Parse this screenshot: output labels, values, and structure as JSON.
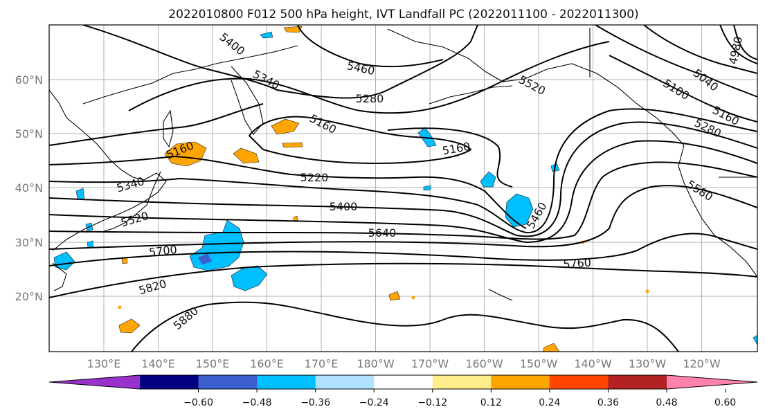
{
  "title": "2022010800 F012 500 hPa height, IVT Landfall PC (2022011100 - 2022011300)",
  "map": {
    "lon_labels": [
      "130°E",
      "140°E",
      "150°E",
      "160°E",
      "170°E",
      "180°W",
      "170°W",
      "160°W",
      "150°W",
      "140°W",
      "130°W",
      "120°W"
    ],
    "lat_labels": [
      "60°N",
      "50°N",
      "40°N",
      "30°N",
      "20°N"
    ]
  },
  "colorbar": {
    "colors": [
      "#9932cc",
      "#000080",
      "#3a5fcd",
      "#00bfff",
      "#b0e2ff",
      "#ffffff",
      "#ffec8b",
      "#ffa500",
      "#ff4500",
      "#b22222",
      "#ff82ab"
    ],
    "tick_labels": [
      "−0.60",
      "−0.48",
      "−0.36",
      "−0.24",
      "−0.12",
      "0.12",
      "0.24",
      "0.36",
      "0.48",
      "0.60"
    ]
  },
  "contours": {
    "labels": [
      "5400",
      "5460",
      "5340",
      "5280",
      "5160",
      "5520",
      "5040",
      "5100",
      "5160",
      "5280",
      "4980",
      "5160",
      "5160",
      "5340",
      "5220",
      "5400",
      "5640",
      "5520",
      "5460",
      "5580",
      "5700",
      "5760",
      "5820",
      "5880"
    ]
  }
}
